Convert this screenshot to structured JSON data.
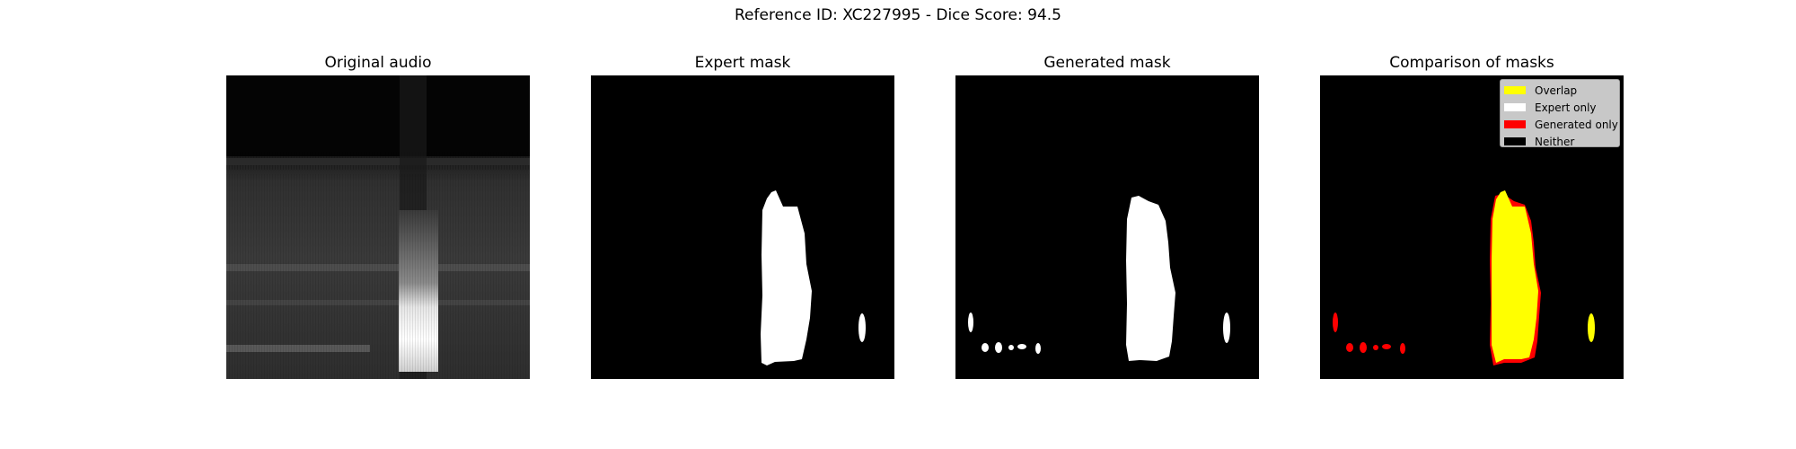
{
  "figure": {
    "title": "Reference ID: XC227995 - Dice Score: 94.5"
  },
  "panels": [
    {
      "title": "Original audio"
    },
    {
      "title": "Expert mask"
    },
    {
      "title": "Generated mask"
    },
    {
      "title": "Comparison of masks"
    }
  ],
  "legend": {
    "items": [
      {
        "label": "Overlap",
        "color": "#ffff00"
      },
      {
        "label": "Expert only",
        "color": "#ffffff"
      },
      {
        "label": "Generated only",
        "color": "#ff0000"
      },
      {
        "label": "Neither",
        "color": "#000000"
      }
    ]
  }
}
